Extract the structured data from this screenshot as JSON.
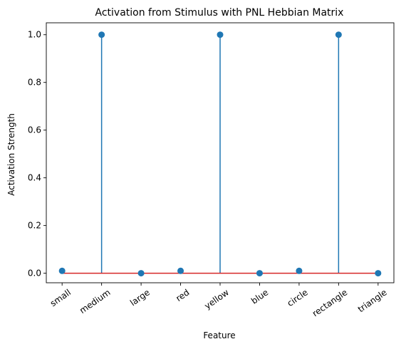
{
  "chart_data": {
    "type": "stem",
    "title": "Activation from Stimulus with PNL Hebbian Matrix",
    "xlabel": "Feature",
    "ylabel": "Activation Strength",
    "categories": [
      "small",
      "medium",
      "large",
      "red",
      "yellow",
      "blue",
      "circle",
      "rectangle",
      "triangle"
    ],
    "values": [
      0.01,
      1.0,
      0.0,
      0.01,
      1.0,
      0.0,
      0.01,
      1.0,
      0.0
    ],
    "ylim": [
      -0.04,
      1.05
    ],
    "yticks": [
      0.0,
      0.2,
      0.4,
      0.6,
      0.8,
      1.0
    ],
    "ytick_labels": [
      "0.0",
      "0.2",
      "0.4",
      "0.6",
      "0.8",
      "1.0"
    ],
    "grid": false,
    "colors": {
      "stem": "#1f77b4",
      "marker": "#1f77b4",
      "baseline": "#d62728"
    }
  }
}
